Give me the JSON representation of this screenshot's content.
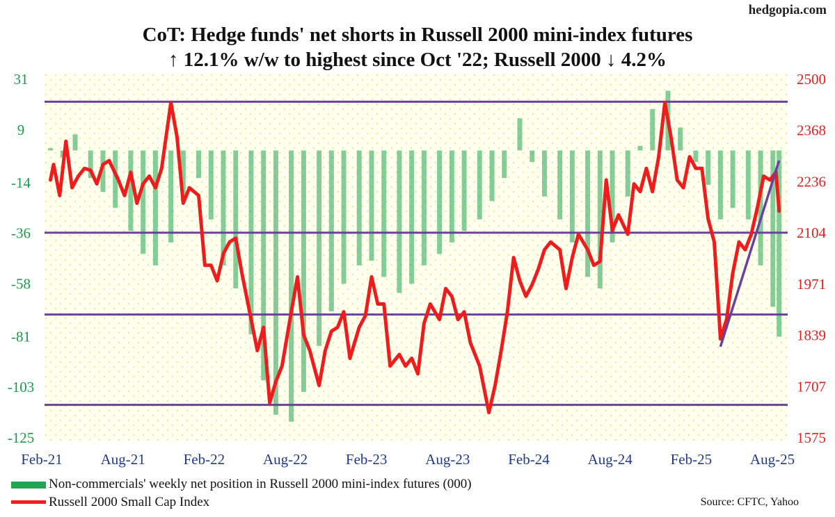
{
  "brand": "hedgopia.com",
  "chart_data": {
    "type": "bar+line",
    "title_line1": "CoT: Hedge funds' net shorts in Russell 2000 mini-index futures",
    "title_line2": "↑ 12.1% w/w to highest since Oct '22; Russell 2000 ↓ 4.2%",
    "x_tick_labels": [
      "Feb-21",
      "Aug-21",
      "Feb-22",
      "Aug-22",
      "Feb-23",
      "Aug-23",
      "Feb-24",
      "Aug-24",
      "Feb-25",
      "Aug-25"
    ],
    "left_axis": {
      "ticks": [
        "31",
        "9",
        "-14",
        "-36",
        "-58",
        "-81",
        "-103",
        "-125"
      ],
      "range": [
        -125,
        31
      ],
      "color": "#1a9a4a"
    },
    "right_axis": {
      "ticks": [
        "2500",
        "2368",
        "2236",
        "2104",
        "1971",
        "1839",
        "1707",
        "1575"
      ],
      "range": [
        1575,
        2500
      ],
      "color": "#e02020"
    },
    "horizontal_lines_right_axis": [
      2442,
      2104,
      1893,
      1660
    ],
    "trendline_right_axis": {
      "start": [
        "2025-04-04",
        1810
      ],
      "end": [
        "2025-08-15",
        2290
      ]
    },
    "series": [
      {
        "name": "Non-commercials' weekly net position in Russell 2000 mini-index futures (000)",
        "type": "bar",
        "axis": "left",
        "color": "#22a552",
        "points": [
          [
            "2021-02-05",
            1
          ],
          [
            "2021-03-05",
            -3
          ],
          [
            "2021-04-02",
            7
          ],
          [
            "2021-05-07",
            -12
          ],
          [
            "2021-06-04",
            -18
          ],
          [
            "2021-07-02",
            -25
          ],
          [
            "2021-08-06",
            -35
          ],
          [
            "2021-09-03",
            -45
          ],
          [
            "2021-10-01",
            -50
          ],
          [
            "2021-11-05",
            -40
          ],
          [
            "2021-12-03",
            -22
          ],
          [
            "2022-01-07",
            -12
          ],
          [
            "2022-02-04",
            -30
          ],
          [
            "2022-03-04",
            -50
          ],
          [
            "2022-04-01",
            -60
          ],
          [
            "2022-05-06",
            -80
          ],
          [
            "2022-06-03",
            -100
          ],
          [
            "2022-07-01",
            -115
          ],
          [
            "2022-08-05",
            -118
          ],
          [
            "2022-09-02",
            -105
          ],
          [
            "2022-10-07",
            -85
          ],
          [
            "2022-11-04",
            -70
          ],
          [
            "2022-12-02",
            -58
          ],
          [
            "2023-01-06",
            -50
          ],
          [
            "2023-02-03",
            -48
          ],
          [
            "2023-03-03",
            -55
          ],
          [
            "2023-04-07",
            -62
          ],
          [
            "2023-05-05",
            -58
          ],
          [
            "2023-06-02",
            -50
          ],
          [
            "2023-07-07",
            -45
          ],
          [
            "2023-08-04",
            -40
          ],
          [
            "2023-09-01",
            -35
          ],
          [
            "2023-10-06",
            -30
          ],
          [
            "2023-11-03",
            -22
          ],
          [
            "2023-12-01",
            -12
          ],
          [
            "2024-01-05",
            14
          ],
          [
            "2024-02-02",
            -5
          ],
          [
            "2024-03-01",
            -20
          ],
          [
            "2024-04-05",
            -30
          ],
          [
            "2024-05-03",
            -40
          ],
          [
            "2024-06-07",
            -55
          ],
          [
            "2024-07-05",
            -60
          ],
          [
            "2024-08-02",
            -40
          ],
          [
            "2024-09-06",
            -20
          ],
          [
            "2024-10-04",
            2
          ],
          [
            "2024-11-01",
            18
          ],
          [
            "2024-12-06",
            26
          ],
          [
            "2025-01-03",
            10
          ],
          [
            "2025-02-07",
            -5
          ],
          [
            "2025-03-07",
            -15
          ],
          [
            "2025-04-04",
            -30
          ],
          [
            "2025-05-02",
            -25
          ],
          [
            "2025-06-06",
            -30
          ],
          [
            "2025-07-04",
            -50
          ],
          [
            "2025-08-01",
            -68
          ],
          [
            "2025-08-15",
            -81
          ]
        ]
      },
      {
        "name": "Russell 2000 Small Cap Index",
        "type": "line",
        "axis": "right",
        "color": "#ee1c1c",
        "points": [
          [
            "2021-02-05",
            2240
          ],
          [
            "2021-02-12",
            2280
          ],
          [
            "2021-02-26",
            2200
          ],
          [
            "2021-03-12",
            2340
          ],
          [
            "2021-03-26",
            2220
          ],
          [
            "2021-04-09",
            2250
          ],
          [
            "2021-04-23",
            2270
          ],
          [
            "2021-05-07",
            2265
          ],
          [
            "2021-05-21",
            2230
          ],
          [
            "2021-06-04",
            2280
          ],
          [
            "2021-06-18",
            2290
          ],
          [
            "2021-07-09",
            2240
          ],
          [
            "2021-07-23",
            2200
          ],
          [
            "2021-08-06",
            2260
          ],
          [
            "2021-08-20",
            2180
          ],
          [
            "2021-09-03",
            2230
          ],
          [
            "2021-09-17",
            2250
          ],
          [
            "2021-10-01",
            2220
          ],
          [
            "2021-10-15",
            2270
          ],
          [
            "2021-11-05",
            2440
          ],
          [
            "2021-11-19",
            2350
          ],
          [
            "2021-12-03",
            2180
          ],
          [
            "2021-12-17",
            2220
          ],
          [
            "2022-01-07",
            2200
          ],
          [
            "2022-01-21",
            2020
          ],
          [
            "2022-02-04",
            2020
          ],
          [
            "2022-02-18",
            1980
          ],
          [
            "2022-03-04",
            2050
          ],
          [
            "2022-03-18",
            2080
          ],
          [
            "2022-04-01",
            2090
          ],
          [
            "2022-04-15",
            2000
          ],
          [
            "2022-05-06",
            1880
          ],
          [
            "2022-05-20",
            1800
          ],
          [
            "2022-06-03",
            1860
          ],
          [
            "2022-06-17",
            1665
          ],
          [
            "2022-07-01",
            1720
          ],
          [
            "2022-07-15",
            1760
          ],
          [
            "2022-08-05",
            1900
          ],
          [
            "2022-08-19",
            1990
          ],
          [
            "2022-09-02",
            1840
          ],
          [
            "2022-09-16",
            1800
          ],
          [
            "2022-10-07",
            1710
          ],
          [
            "2022-10-21",
            1800
          ],
          [
            "2022-11-04",
            1850
          ],
          [
            "2022-11-18",
            1860
          ],
          [
            "2022-12-02",
            1900
          ],
          [
            "2022-12-16",
            1780
          ],
          [
            "2023-01-06",
            1860
          ],
          [
            "2023-01-20",
            1890
          ],
          [
            "2023-02-03",
            1990
          ],
          [
            "2023-02-17",
            1920
          ],
          [
            "2023-03-03",
            1920
          ],
          [
            "2023-03-17",
            1760
          ],
          [
            "2023-04-07",
            1790
          ],
          [
            "2023-04-21",
            1760
          ],
          [
            "2023-05-05",
            1780
          ],
          [
            "2023-05-19",
            1740
          ],
          [
            "2023-06-02",
            1870
          ],
          [
            "2023-06-16",
            1920
          ],
          [
            "2023-07-07",
            1880
          ],
          [
            "2023-07-21",
            1960
          ],
          [
            "2023-08-04",
            1940
          ],
          [
            "2023-08-18",
            1880
          ],
          [
            "2023-09-01",
            1900
          ],
          [
            "2023-09-15",
            1820
          ],
          [
            "2023-10-06",
            1760
          ],
          [
            "2023-10-27",
            1640
          ],
          [
            "2023-11-10",
            1710
          ],
          [
            "2023-11-24",
            1800
          ],
          [
            "2023-12-08",
            1900
          ],
          [
            "2023-12-22",
            2040
          ],
          [
            "2024-01-05",
            1980
          ],
          [
            "2024-01-19",
            1940
          ],
          [
            "2024-02-02",
            1970
          ],
          [
            "2024-02-16",
            2010
          ],
          [
            "2024-03-01",
            2060
          ],
          [
            "2024-03-15",
            2080
          ],
          [
            "2024-04-05",
            2060
          ],
          [
            "2024-04-19",
            1960
          ],
          [
            "2024-05-03",
            2040
          ],
          [
            "2024-05-17",
            2100
          ],
          [
            "2024-06-07",
            2060
          ],
          [
            "2024-06-21",
            2020
          ],
          [
            "2024-07-05",
            2030
          ],
          [
            "2024-07-19",
            2240
          ],
          [
            "2024-08-02",
            2110
          ],
          [
            "2024-08-16",
            2150
          ],
          [
            "2024-09-06",
            2100
          ],
          [
            "2024-09-20",
            2230
          ],
          [
            "2024-10-04",
            2210
          ],
          [
            "2024-10-18",
            2270
          ],
          [
            "2024-11-01",
            2210
          ],
          [
            "2024-11-15",
            2300
          ],
          [
            "2024-11-29",
            2440
          ],
          [
            "2024-12-13",
            2350
          ],
          [
            "2024-12-27",
            2240
          ],
          [
            "2025-01-10",
            2220
          ],
          [
            "2025-01-24",
            2300
          ],
          [
            "2025-02-07",
            2270
          ],
          [
            "2025-02-21",
            2270
          ],
          [
            "2025-03-07",
            2140
          ],
          [
            "2025-03-21",
            2080
          ],
          [
            "2025-04-04",
            1830
          ],
          [
            "2025-04-18",
            1880
          ],
          [
            "2025-05-02",
            2000
          ],
          [
            "2025-05-16",
            2080
          ],
          [
            "2025-05-30",
            2060
          ],
          [
            "2025-06-13",
            2100
          ],
          [
            "2025-06-27",
            2170
          ],
          [
            "2025-07-11",
            2250
          ],
          [
            "2025-07-25",
            2240
          ],
          [
            "2025-08-08",
            2260
          ],
          [
            "2025-08-15",
            2160
          ]
        ]
      }
    ],
    "grid": "dotted",
    "legend_position": "bottom-left"
  },
  "source": "Source: CFTC, Yahoo"
}
